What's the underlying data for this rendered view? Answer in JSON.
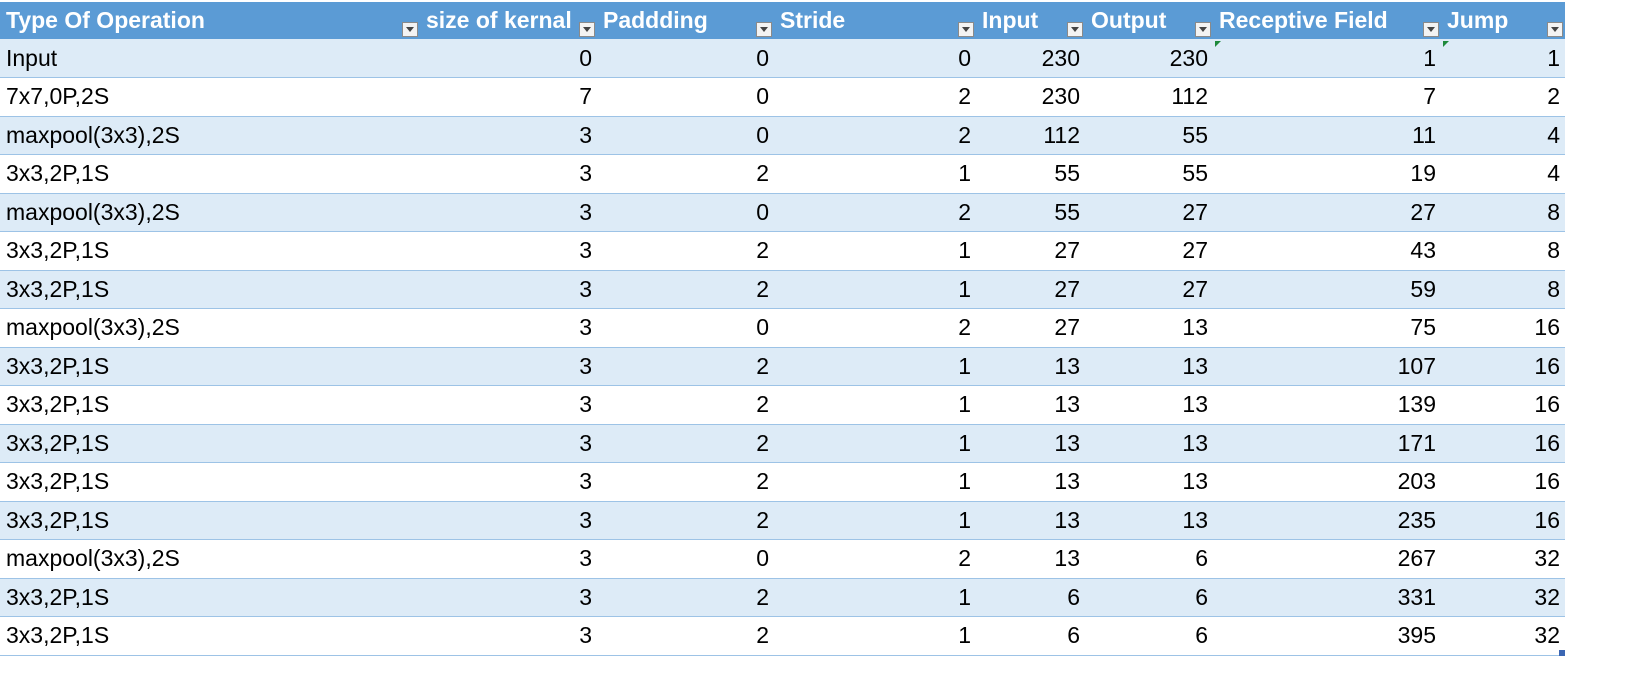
{
  "table": {
    "headers": [
      "Type Of Operation",
      "size of kernal",
      "Paddding",
      "Stride",
      "Input",
      "Output",
      "Receptive Field",
      "Jump"
    ],
    "rows": [
      [
        "Input",
        "0",
        "0",
        "0",
        "230",
        "230",
        "1",
        "1"
      ],
      [
        "7x7,0P,2S",
        "7",
        "0",
        "2",
        "230",
        "112",
        "7",
        "2"
      ],
      [
        "maxpool(3x3),2S",
        "3",
        "0",
        "2",
        "112",
        "55",
        "11",
        "4"
      ],
      [
        "3x3,2P,1S",
        "3",
        "2",
        "1",
        "55",
        "55",
        "19",
        "4"
      ],
      [
        "maxpool(3x3),2S",
        "3",
        "0",
        "2",
        "55",
        "27",
        "27",
        "8"
      ],
      [
        "3x3,2P,1S",
        "3",
        "2",
        "1",
        "27",
        "27",
        "43",
        "8"
      ],
      [
        "3x3,2P,1S",
        "3",
        "2",
        "1",
        "27",
        "27",
        "59",
        "8"
      ],
      [
        "maxpool(3x3),2S",
        "3",
        "0",
        "2",
        "27",
        "13",
        "75",
        "16"
      ],
      [
        "3x3,2P,1S",
        "3",
        "2",
        "1",
        "13",
        "13",
        "107",
        "16"
      ],
      [
        "3x3,2P,1S",
        "3",
        "2",
        "1",
        "13",
        "13",
        "139",
        "16"
      ],
      [
        "3x3,2P,1S",
        "3",
        "2",
        "1",
        "13",
        "13",
        "171",
        "16"
      ],
      [
        "3x3,2P,1S",
        "3",
        "2",
        "1",
        "13",
        "13",
        "203",
        "16"
      ],
      [
        "3x3,2P,1S",
        "3",
        "2",
        "1",
        "13",
        "13",
        "235",
        "16"
      ],
      [
        "maxpool(3x3),2S",
        "3",
        "0",
        "2",
        "13",
        "6",
        "267",
        "32"
      ],
      [
        "3x3,2P,1S",
        "3",
        "2",
        "1",
        "6",
        "6",
        "331",
        "32"
      ],
      [
        "3x3,2P,1S",
        "3",
        "2",
        "1",
        "6",
        "6",
        "395",
        "32"
      ]
    ]
  },
  "colors": {
    "header_bg": "#5b9bd5",
    "header_text": "#ffffff",
    "band_row": "#ddebf7",
    "plain_row": "#ffffff",
    "row_border": "#9dc3e6",
    "error_indicator": "#1e8a3c"
  },
  "icons": {
    "filter_button": "chevron-down-icon",
    "error_indicator": "green-triangle-icon",
    "resize_handle": "table-resize-handle-icon"
  }
}
